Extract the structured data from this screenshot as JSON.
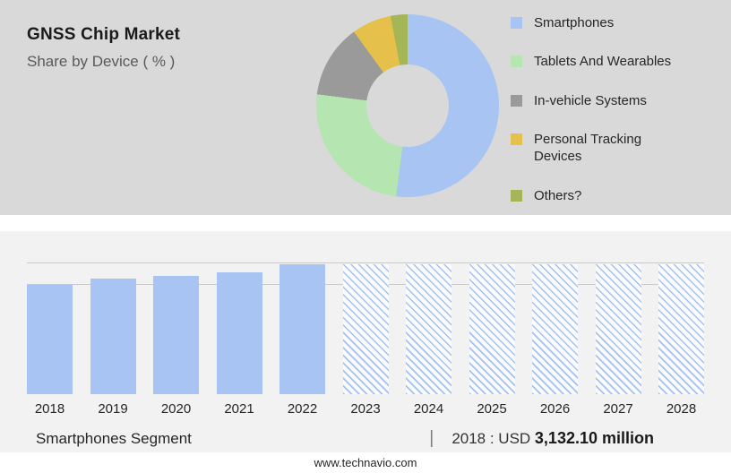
{
  "header": {
    "title": "GNSS Chip Market",
    "subtitle": "Share by Device ( % )"
  },
  "caption": {
    "segment": "Smartphones Segment",
    "separator": "|",
    "value_prefix": "2018 : USD ",
    "value_bold": "3,132.10 million"
  },
  "footer": {
    "website": "www.technavio.com"
  },
  "colors": {
    "panel_gray": "#d9d9d9",
    "panel_light": "#f2f2f2",
    "bar_blue": "#a7c4f2"
  },
  "chart_data": [
    {
      "type": "pie",
      "title": "GNSS Chip Market — Share by Device ( % )",
      "donut": true,
      "legend_position": "right",
      "labels": [
        "Smartphones",
        "Tablets And Wearables",
        "In-vehicle Systems",
        "Personal Tracking Devices",
        "Others?"
      ],
      "values": [
        52,
        25,
        13,
        7,
        3
      ],
      "colors": [
        "#a7c4f2",
        "#b5e5b0",
        "#9a9a9a",
        "#e5c14b",
        "#a4b656"
      ]
    },
    {
      "type": "bar",
      "title": "Smartphones Segment market size by year",
      "categories": [
        "2018",
        "2019",
        "2020",
        "2021",
        "2022",
        "2023",
        "2024",
        "2025",
        "2026",
        "2027",
        "2028"
      ],
      "values": [
        84,
        89,
        91,
        94,
        100,
        100,
        100,
        100,
        100,
        100,
        100
      ],
      "forecast_categories": [
        "2023",
        "2024",
        "2025",
        "2026",
        "2027",
        "2028"
      ],
      "annotation": "2018 : USD 3,132.10 million",
      "xlabel": "",
      "ylabel": "",
      "ylim": [
        0,
        100
      ],
      "grid": "horizontal-top"
    }
  ]
}
